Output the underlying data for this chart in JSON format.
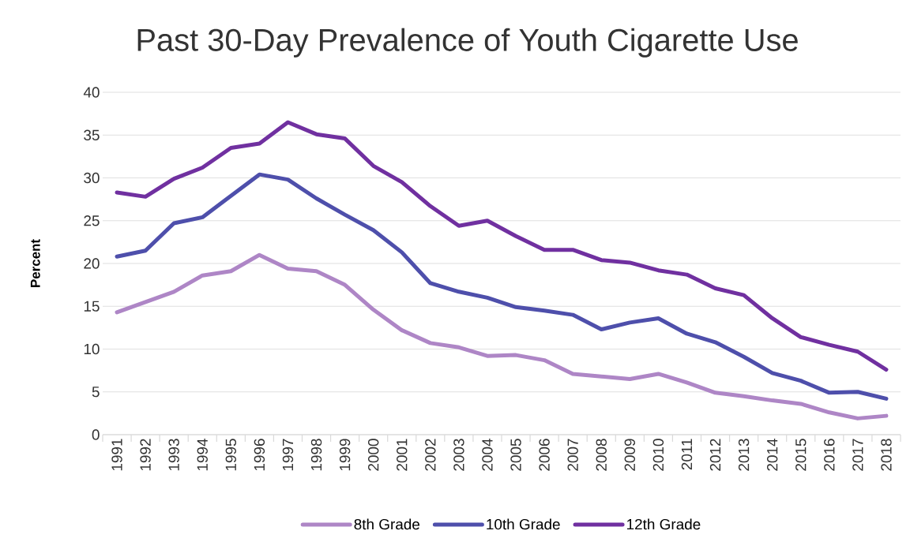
{
  "chart_data": {
    "type": "line",
    "title": "Past 30-Day Prevalence of Youth Cigarette Use",
    "ylabel": "Percent",
    "categories": [
      "1991",
      "1992",
      "1993",
      "1994",
      "1995",
      "1996",
      "1997",
      "1998",
      "1999",
      "2000",
      "2001",
      "2002",
      "2003",
      "2004",
      "2005",
      "2006",
      "2007",
      "2008",
      "2009",
      "2010",
      "2011",
      "2012",
      "2013",
      "2014",
      "2015",
      "2016",
      "2017",
      "2018"
    ],
    "series": [
      {
        "name": "8th Grade",
        "color": "#ae86c6",
        "values": [
          14.3,
          15.5,
          16.7,
          18.6,
          19.1,
          21.0,
          19.4,
          19.1,
          17.5,
          14.6,
          12.2,
          10.7,
          10.2,
          9.2,
          9.3,
          8.7,
          7.1,
          6.8,
          6.5,
          7.1,
          6.1,
          4.9,
          4.5,
          4.0,
          3.6,
          2.6,
          1.9,
          2.2
        ]
      },
      {
        "name": "10th Grade",
        "color": "#4e4fab",
        "values": [
          20.8,
          21.5,
          24.7,
          25.4,
          27.9,
          30.4,
          29.8,
          27.6,
          25.7,
          23.9,
          21.3,
          17.7,
          16.7,
          16.0,
          14.9,
          14.5,
          14.0,
          12.3,
          13.1,
          13.6,
          11.8,
          10.8,
          9.1,
          7.2,
          6.3,
          4.9,
          5.0,
          4.2
        ]
      },
      {
        "name": "12th Grade",
        "color": "#7030a0",
        "values": [
          28.3,
          27.8,
          29.9,
          31.2,
          33.5,
          34.0,
          36.5,
          35.1,
          34.6,
          31.4,
          29.5,
          26.7,
          24.4,
          25.0,
          23.2,
          21.6,
          21.6,
          20.4,
          20.1,
          19.2,
          18.7,
          17.1,
          16.3,
          13.6,
          11.4,
          10.5,
          9.7,
          7.6
        ]
      }
    ],
    "ylim": [
      0,
      40
    ],
    "yticks": [
      0,
      5,
      10,
      15,
      20,
      25,
      30,
      35,
      40
    ],
    "grid": "y",
    "legend": "bottom"
  }
}
